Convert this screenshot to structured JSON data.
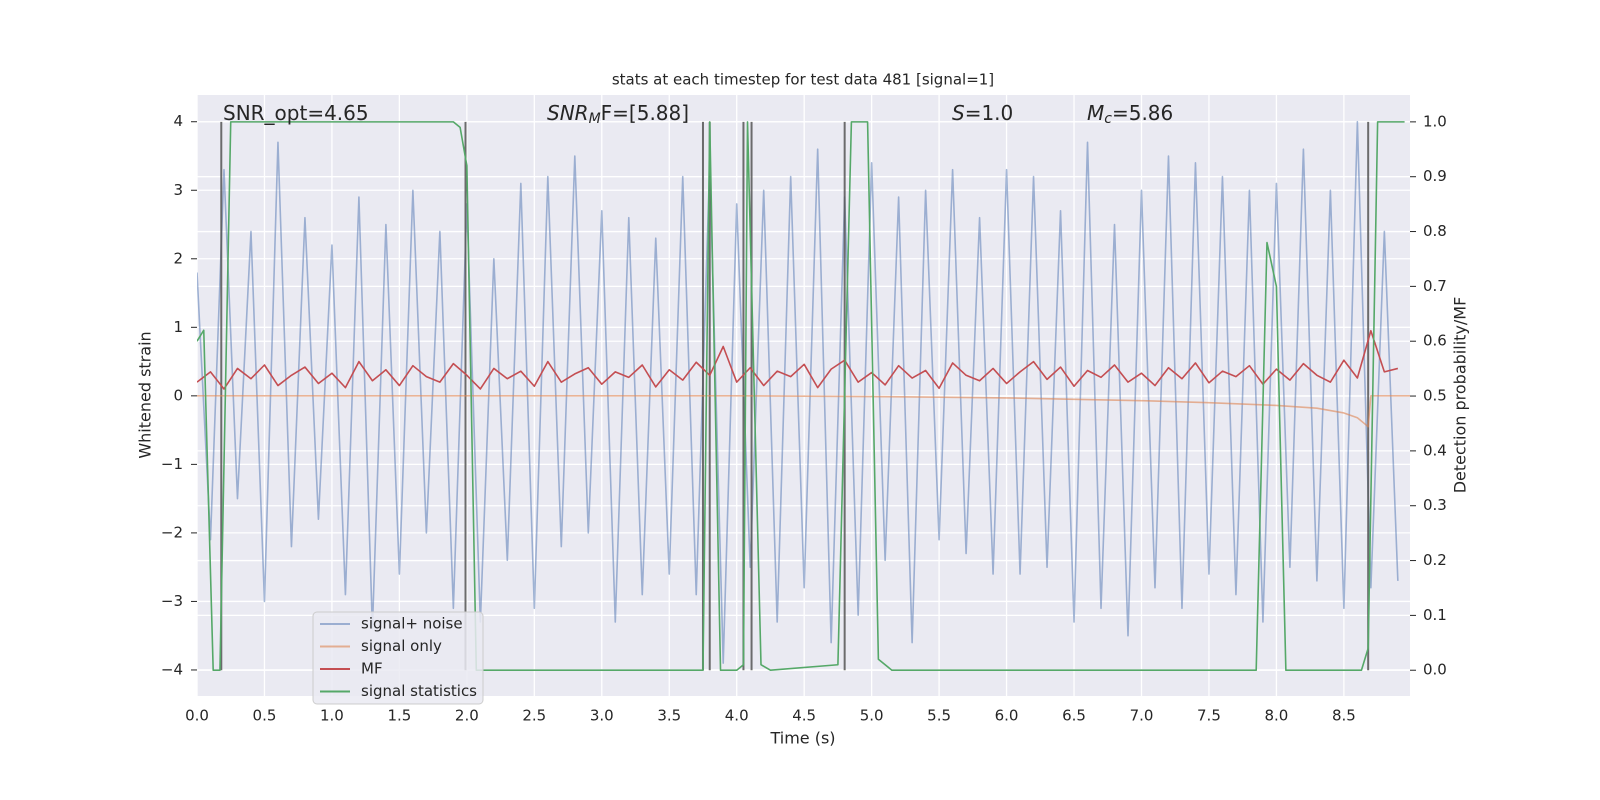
{
  "chart_data": {
    "type": "line",
    "title": "stats at each timestep for test data 481 [signal=1]",
    "xlabel": "Time (s)",
    "ylabel": "Whitened strain",
    "y2label": "Detection probability/MF",
    "grid": true,
    "legend": "lower left",
    "xlim": [
      0,
      8.99
    ],
    "ylim": [
      -4.38,
      4.39
    ],
    "y2lim": [
      -0.047,
      1.049
    ],
    "xticks": [
      {
        "value": 0,
        "label": "0.0"
      },
      {
        "value": 0.5,
        "label": "0.5"
      },
      {
        "value": 1,
        "label": "1.0"
      },
      {
        "value": 1.5,
        "label": "1.5"
      },
      {
        "value": 2,
        "label": "2.0"
      },
      {
        "value": 2.5,
        "label": "2.5"
      },
      {
        "value": 3,
        "label": "3.0"
      },
      {
        "value": 3.5,
        "label": "3.5"
      },
      {
        "value": 4,
        "label": "4.0"
      },
      {
        "value": 4.5,
        "label": "4.5"
      },
      {
        "value": 5,
        "label": "5.0"
      },
      {
        "value": 5.5,
        "label": "5.5"
      },
      {
        "value": 6,
        "label": "6.0"
      },
      {
        "value": 6.5,
        "label": "6.5"
      },
      {
        "value": 7,
        "label": "7.0"
      },
      {
        "value": 7.5,
        "label": "7.5"
      },
      {
        "value": 8,
        "label": "8.0"
      },
      {
        "value": 8.5,
        "label": "8.5"
      }
    ],
    "yticks": [
      {
        "value": -4,
        "label": "−4"
      },
      {
        "value": -3,
        "label": "−3"
      },
      {
        "value": -2,
        "label": "−2"
      },
      {
        "value": -1,
        "label": "−1"
      },
      0,
      1,
      2,
      3,
      4
    ],
    "y2ticks": [
      {
        "value": 0,
        "label": "0.0"
      },
      {
        "value": 0.1,
        "label": "0.1"
      },
      {
        "value": 0.2,
        "label": "0.2"
      },
      {
        "value": 0.3,
        "label": "0.3"
      },
      {
        "value": 0.4,
        "label": "0.4"
      },
      {
        "value": 0.5,
        "label": "0.5"
      },
      {
        "value": 0.6,
        "label": "0.6"
      },
      {
        "value": 0.7,
        "label": "0.7"
      },
      {
        "value": 0.8,
        "label": "0.8"
      },
      {
        "value": 0.9,
        "label": "0.9"
      },
      {
        "value": 1,
        "label": "1.0"
      }
    ],
    "annotations": [
      [
        {
          "text": "SNR_opt=4.65"
        }
      ],
      [
        {
          "text": "SNR",
          "style": "italic"
        },
        {
          "text": "M",
          "style": "italic",
          "sub": true
        },
        {
          "text": "F=[5.88]"
        }
      ],
      [
        {
          "text": "S",
          "style": "italic"
        },
        {
          "text": "=1.0"
        }
      ],
      [
        {
          "text": "M",
          "style": "italic"
        },
        {
          "text": "c",
          "style": "italic",
          "sub": true
        },
        {
          "text": "=5.86"
        }
      ]
    ],
    "vlines": {
      "color": "#555555",
      "x": [
        0.18,
        1.99,
        3.75,
        3.8,
        4.05,
        4.11,
        4.8,
        8.68
      ]
    },
    "x": [
      0,
      0.1,
      0.2,
      0.3,
      0.4,
      0.5,
      0.6,
      0.7,
      0.8,
      0.9,
      1,
      1.1,
      1.2,
      1.3,
      1.4,
      1.5,
      1.6,
      1.7,
      1.8,
      1.9,
      2,
      2.1,
      2.2,
      2.3,
      2.4,
      2.5,
      2.6,
      2.7,
      2.8,
      2.9,
      3,
      3.1,
      3.2,
      3.3,
      3.4,
      3.5,
      3.6,
      3.7,
      3.8,
      3.9,
      4,
      4.1,
      4.2,
      4.3,
      4.4,
      4.5,
      4.6,
      4.7,
      4.8,
      4.9,
      5,
      5.1,
      5.2,
      5.3,
      5.4,
      5.5,
      5.6,
      5.7,
      5.8,
      5.9,
      6,
      6.1,
      6.2,
      6.3,
      6.4,
      6.5,
      6.6,
      6.7,
      6.8,
      6.9,
      7,
      7.1,
      7.2,
      7.3,
      7.4,
      7.5,
      7.6,
      7.7,
      7.8,
      7.9,
      8,
      8.1,
      8.2,
      8.3,
      8.4,
      8.5,
      8.6,
      8.7,
      8.8,
      8.9
    ],
    "series": [
      {
        "name": "signal+ noise",
        "color": "#4c72b0",
        "alpha": 0.5,
        "values": [
          1.8,
          -2.1,
          3.3,
          -1.5,
          2.4,
          -3.0,
          3.7,
          -2.2,
          2.6,
          -1.8,
          2.2,
          -2.9,
          2.9,
          -3.4,
          2.5,
          -2.6,
          3.0,
          -2.0,
          2.4,
          -3.1,
          2.8,
          -3.3,
          2.0,
          -2.4,
          3.1,
          -3.1,
          3.2,
          -2.2,
          3.5,
          -2.0,
          2.7,
          -3.3,
          2.6,
          -2.9,
          2.3,
          -2.6,
          3.2,
          -2.9,
          3.4,
          -3.9,
          2.8,
          -2.5,
          3.0,
          -3.3,
          3.2,
          -2.8,
          3.6,
          -3.6,
          2.9,
          -3.2,
          3.4,
          -2.4,
          2.9,
          -3.6,
          3.0,
          -2.1,
          3.3,
          -2.3,
          2.6,
          -2.6,
          3.3,
          -2.6,
          3.2,
          -2.5,
          2.7,
          -3.3,
          3.7,
          -3.1,
          2.5,
          -3.5,
          3.0,
          -2.8,
          3.5,
          -3.1,
          3.4,
          -2.6,
          3.2,
          -2.9,
          3.0,
          -3.3,
          3.1,
          -2.5,
          3.6,
          -2.7,
          3.0,
          -3.1,
          4.0,
          -2.8,
          2.4,
          -2.7
        ]
      },
      {
        "name": "signal only",
        "color": "#dd8452",
        "alpha": 0.6,
        "x": [
          0,
          1,
          2,
          3,
          4,
          5,
          5.5,
          6,
          6.5,
          7,
          7.5,
          8,
          8.3,
          8.5,
          8.6,
          8.68,
          8.7,
          8.99
        ],
        "values": [
          0,
          0,
          0,
          0,
          0,
          -0.01,
          -0.02,
          -0.03,
          -0.05,
          -0.07,
          -0.1,
          -0.14,
          -0.18,
          -0.25,
          -0.32,
          -0.45,
          0,
          0
        ]
      },
      {
        "name": "MF",
        "color": "#c44e52",
        "alpha": 1,
        "values": [
          0.2,
          0.35,
          0.1,
          0.4,
          0.25,
          0.45,
          0.15,
          0.3,
          0.42,
          0.18,
          0.33,
          0.12,
          0.5,
          0.22,
          0.38,
          0.15,
          0.44,
          0.28,
          0.2,
          0.47,
          0.3,
          0.1,
          0.4,
          0.25,
          0.36,
          0.14,
          0.5,
          0.2,
          0.32,
          0.41,
          0.17,
          0.35,
          0.27,
          0.45,
          0.13,
          0.38,
          0.23,
          0.49,
          0.3,
          0.72,
          0.2,
          0.41,
          0.15,
          0.36,
          0.28,
          0.46,
          0.12,
          0.39,
          0.52,
          0.2,
          0.34,
          0.16,
          0.44,
          0.26,
          0.37,
          0.11,
          0.48,
          0.3,
          0.22,
          0.4,
          0.18,
          0.35,
          0.5,
          0.24,
          0.42,
          0.14,
          0.37,
          0.27,
          0.45,
          0.2,
          0.33,
          0.15,
          0.41,
          0.25,
          0.48,
          0.19,
          0.36,
          0.28,
          0.44,
          0.17,
          0.39,
          0.23,
          0.47,
          0.3,
          0.2,
          0.52,
          0.26,
          0.95,
          0.35,
          0.4
        ]
      },
      {
        "name": "signal statistics",
        "color": "#55a868",
        "alpha": 1,
        "axis": "y2",
        "x": [
          0,
          0.05,
          0.12,
          0.17,
          0.25,
          1.9,
          1.95,
          2.0,
          2.07,
          3.75,
          3.8,
          3.88,
          4.0,
          4.05,
          4.08,
          4.18,
          4.25,
          4.75,
          4.85,
          4.97,
          5.05,
          5.15,
          7.85,
          7.93,
          8.0,
          8.07,
          8.55,
          8.63,
          8.68,
          8.75,
          8.95
        ],
        "values": [
          0.6,
          0.62,
          0,
          0,
          1,
          1,
          0.99,
          0.92,
          0,
          0,
          1,
          0,
          0,
          0.01,
          1,
          0.01,
          0,
          0.01,
          1,
          1,
          0.02,
          0,
          0,
          0.78,
          0.7,
          0,
          0,
          0,
          0.04,
          1,
          1
        ]
      }
    ]
  }
}
